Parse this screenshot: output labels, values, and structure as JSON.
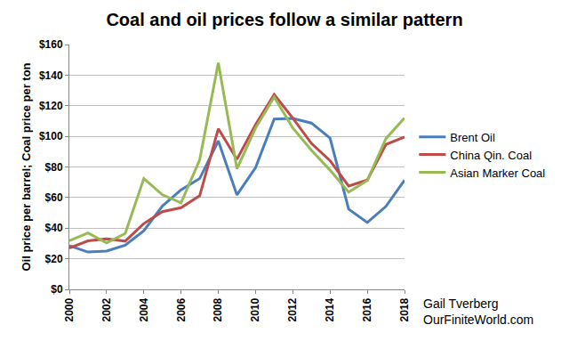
{
  "chart_data": {
    "type": "line",
    "title": "Coal and oil prices follow a similar pattern",
    "y_label": "Oil price per barrel; Coal price per ton",
    "annotations": [
      "Gail Tverberg",
      "OurFiniteWorld.com"
    ],
    "x": [
      2000,
      2001,
      2002,
      2003,
      2004,
      2005,
      2006,
      2007,
      2008,
      2009,
      2010,
      2011,
      2012,
      2013,
      2014,
      2015,
      2016,
      2017,
      2018
    ],
    "series": [
      {
        "name": "Brent Oil",
        "color": "#4a7ebb",
        "values": [
          28.5,
          24.4,
          25.0,
          28.8,
          38.3,
          54.5,
          65.1,
          72.4,
          97.0,
          61.7,
          79.5,
          111.3,
          111.7,
          108.7,
          98.9,
          52.4,
          43.7,
          54.2,
          71.3
        ]
      },
      {
        "name": "China Qin. Coal",
        "color": "#be4b48",
        "values": [
          27.0,
          31.7,
          33.0,
          31.5,
          43.0,
          50.8,
          53.4,
          61.2,
          105.0,
          85.0,
          107.6,
          127.3,
          111.9,
          95.4,
          84.1,
          67.5,
          71.4,
          94.7,
          99.5
        ]
      },
      {
        "name": "Asian Marker Coal",
        "color": "#98b954",
        "values": [
          31.8,
          36.9,
          30.4,
          36.5,
          72.4,
          61.8,
          56.5,
          84.6,
          148.1,
          78.8,
          105.4,
          125.7,
          105.5,
          90.9,
          77.9,
          63.5,
          71.1,
          98.5,
          112.0
        ]
      }
    ],
    "xlim": [
      2000,
      2018
    ],
    "xticks": [
      2000,
      2002,
      2004,
      2006,
      2008,
      2010,
      2012,
      2014,
      2016,
      2018
    ],
    "ylim": [
      0,
      160
    ],
    "yticks": [
      {
        "value": 0,
        "label": "$0"
      },
      {
        "value": 20,
        "label": "$20"
      },
      {
        "value": 40,
        "label": "$40"
      },
      {
        "value": 60,
        "label": "$60"
      },
      {
        "value": 80,
        "label": "$80"
      },
      {
        "value": 100,
        "label": "$100"
      },
      {
        "value": 120,
        "label": "$120"
      },
      {
        "value": 140,
        "label": "$140"
      },
      {
        "value": 160,
        "label": "$160"
      }
    ],
    "grid": true,
    "legend": "right"
  }
}
